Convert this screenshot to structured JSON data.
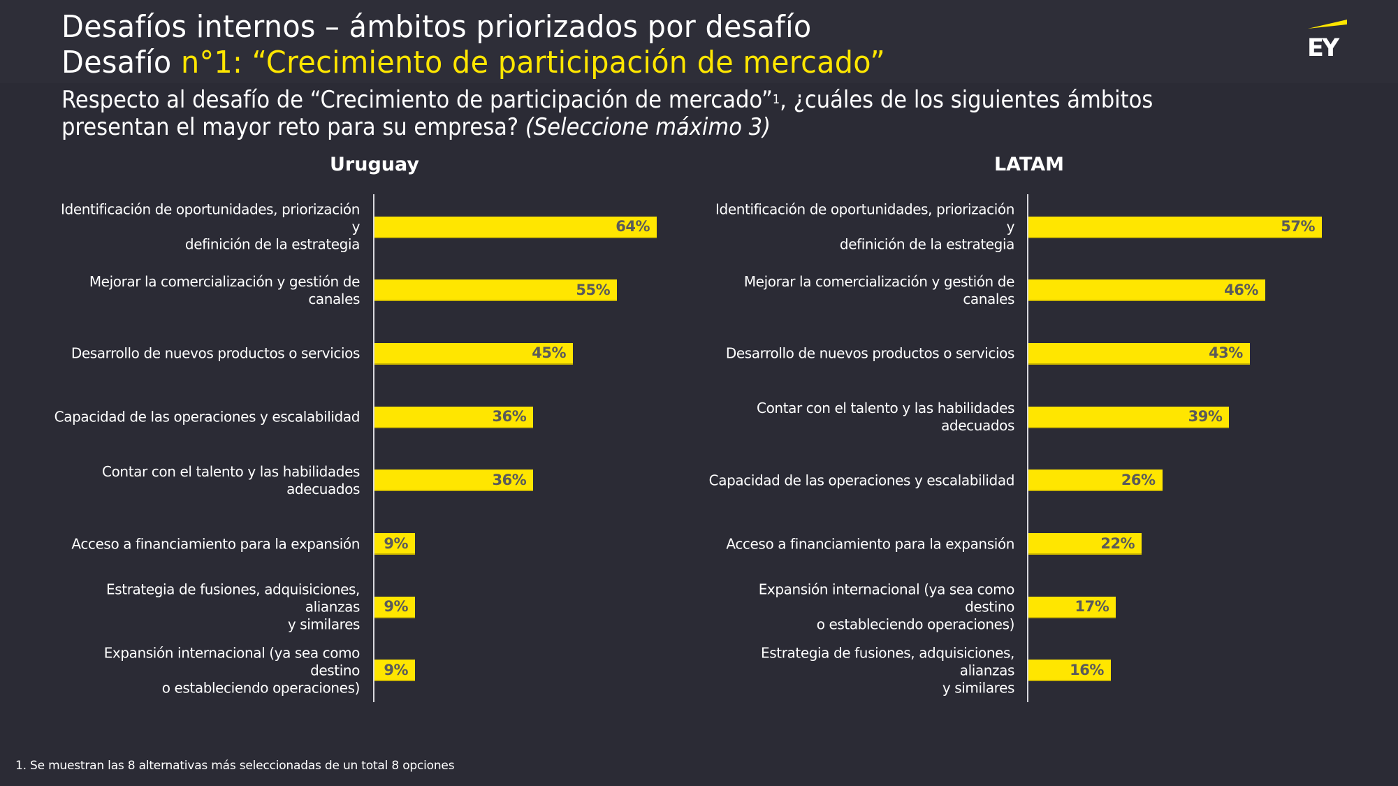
{
  "header": {
    "title_line1": "Desafíos internos – ámbitos priorizados por desafío",
    "title_line2_prefix": "Desafío ",
    "title_line2_accent": "n°1: “Crecimiento de participación de mercado”",
    "logo_text": "EY"
  },
  "question": {
    "line1_prefix": "Respecto al desafío de “Crecimiento de participación de mercado”",
    "footnote_ref": "1",
    "line1_suffix": ", ¿cuáles de los siguientes ámbitos",
    "line2_prefix": "presentan el mayor reto para su empresa? ",
    "line2_italic": "(Seleccione máximo 3)"
  },
  "footnote": "1. Se muestran las 8 alternativas más seleccionadas de un total 8 opciones",
  "colors": {
    "bar": "#ffe600",
    "background": "#2b2b35",
    "accent_text": "#ffe600",
    "bar_label": "#5a5a5a"
  },
  "chart_data": [
    {
      "type": "bar",
      "orientation": "horizontal",
      "title": "Uruguay",
      "xlabel": "",
      "ylabel": "",
      "unit": "%",
      "categories": [
        "Identificación de oportunidades, priorización y definición de la estrategia",
        "Mejorar la comercialización y gestión de canales",
        "Desarrollo de nuevos productos o servicios",
        "Capacidad de las operaciones y escalabilidad",
        "Contar con el talento y las habilidades adecuados",
        "Acceso a financiamiento para la expansión",
        "Estrategia de fusiones, adquisiciones, alianzas y similares",
        "Expansión internacional (ya sea como destino o estableciendo operaciones)"
      ],
      "category_lines": [
        [
          "Identificación de oportunidades, priorización y",
          "definición de la estrategia"
        ],
        [
          "Mejorar la comercialización y gestión de",
          "canales"
        ],
        [
          "Desarrollo de nuevos productos o servicios"
        ],
        [
          "Capacidad de las operaciones y escalabilidad"
        ],
        [
          "Contar con el talento y las habilidades",
          "adecuados"
        ],
        [
          "Acceso a financiamiento para la expansión"
        ],
        [
          "Estrategia de fusiones, adquisiciones, alianzas",
          "y similares"
        ],
        [
          "Expansión internacional (ya sea como destino",
          "o estableciendo operaciones)"
        ]
      ],
      "values": [
        64,
        55,
        45,
        36,
        36,
        9,
        9,
        9
      ],
      "value_labels": [
        "64%",
        "55%",
        "45%",
        "36%",
        "36%",
        "9%",
        "9%",
        "9%"
      ],
      "xlim": [
        0,
        64
      ],
      "grid": false,
      "legend": "none"
    },
    {
      "type": "bar",
      "orientation": "horizontal",
      "title": "LATAM",
      "xlabel": "",
      "ylabel": "",
      "unit": "%",
      "categories": [
        "Identificación de oportunidades, priorización y definición de la estrategia",
        "Mejorar la comercialización y gestión de canales",
        "Desarrollo de nuevos productos o servicios",
        "Contar con el talento y las habilidades adecuados",
        "Capacidad de las operaciones y escalabilidad",
        "Acceso a financiamiento para la expansión",
        "Expansión internacional (ya sea como destino o estableciendo operaciones)",
        "Estrategia de fusiones, adquisiciones, alianzas y similares"
      ],
      "category_lines": [
        [
          "Identificación de oportunidades, priorización y",
          "definición de la estrategia"
        ],
        [
          "Mejorar la comercialización y gestión de",
          "canales"
        ],
        [
          "Desarrollo de nuevos productos o servicios"
        ],
        [
          "Contar con el talento y las habilidades",
          "adecuados"
        ],
        [
          "Capacidad de las operaciones y escalabilidad"
        ],
        [
          "Acceso a financiamiento para la expansión"
        ],
        [
          "Expansión internacional (ya sea como destino",
          "o estableciendo operaciones)"
        ],
        [
          "Estrategia de fusiones, adquisiciones, alianzas",
          "y similares"
        ]
      ],
      "values": [
        57,
        46,
        43,
        39,
        26,
        22,
        17,
        16
      ],
      "value_labels": [
        "57%",
        "46%",
        "43%",
        "39%",
        "26%",
        "22%",
        "17%",
        "16%"
      ],
      "xlim": [
        0,
        57
      ],
      "grid": false,
      "legend": "none"
    }
  ]
}
